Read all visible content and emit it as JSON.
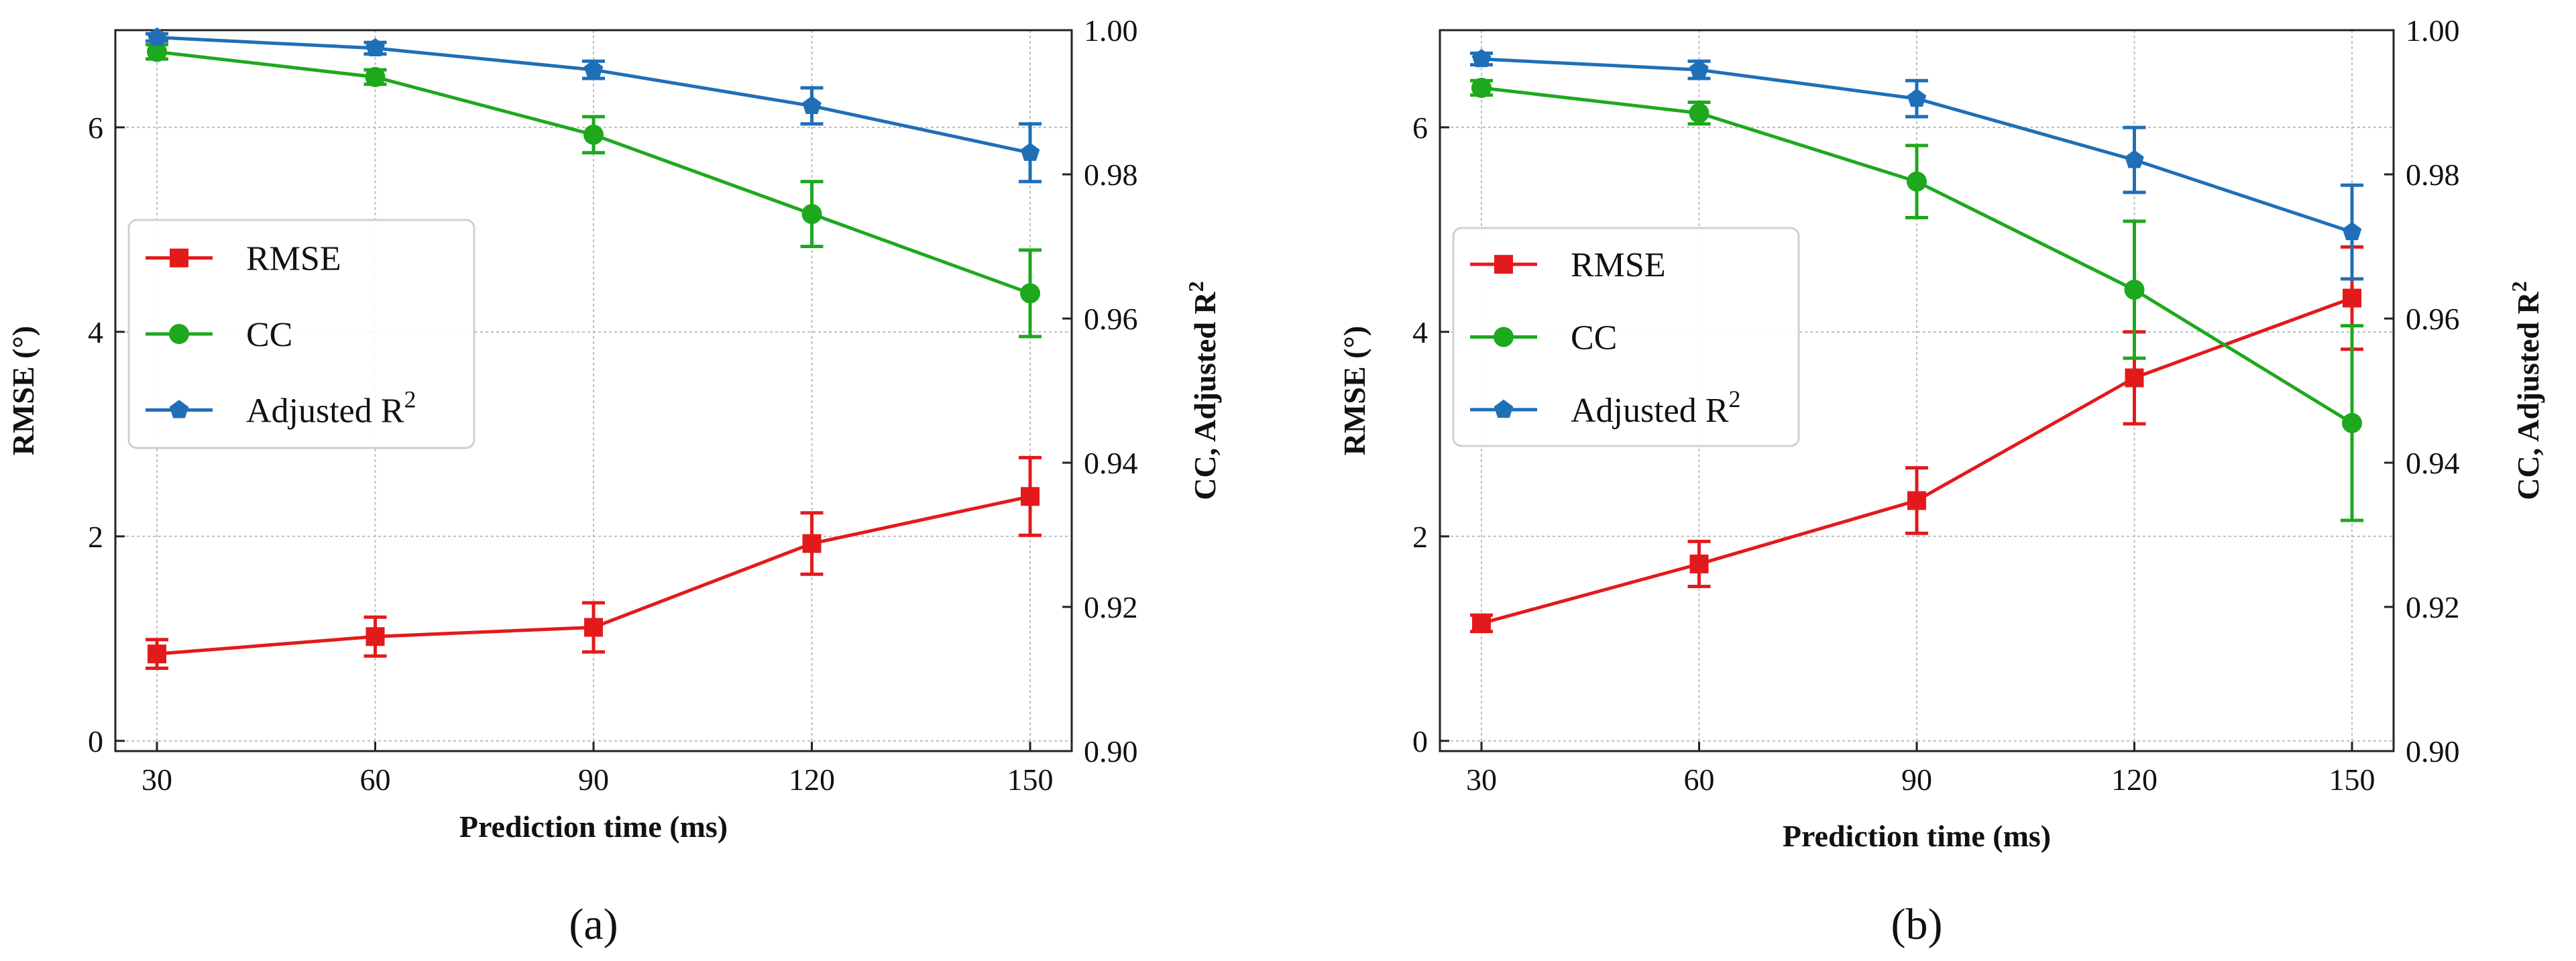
{
  "colors": {
    "RMSE": "#e31a1c",
    "CC": "#1ea81e",
    "Adjusted R2": "#1f6fb8"
  },
  "chart_data": [
    {
      "type": "line",
      "panel_label": "(a)",
      "xlabel": "Prediction time (ms)",
      "ylabel": "RMSE (°)",
      "y2label": "CC, Adjusted R",
      "y2label_sup": "2",
      "x": [
        30,
        60,
        90,
        120,
        150
      ],
      "xticks": [
        "30",
        "60",
        "90",
        "120",
        "150"
      ],
      "ylim": [
        -0.1,
        6.95
      ],
      "yticks": [
        "0",
        "2",
        "4",
        "6"
      ],
      "y2lim": [
        0.9,
        1.0
      ],
      "y2ticks": [
        "0.90",
        "0.92",
        "0.94",
        "0.96",
        "0.98",
        "1.00"
      ],
      "grid": true,
      "legend_position": "center-left",
      "series": [
        {
          "name": "RMSE",
          "legend_label": "RMSE",
          "axis": "left",
          "marker": "square",
          "values": [
            0.85,
            1.02,
            1.11,
            1.93,
            2.39
          ],
          "errors": [
            0.14,
            0.19,
            0.24,
            0.3,
            0.38
          ]
        },
        {
          "name": "CC",
          "legend_label": "CC",
          "axis": "right",
          "marker": "circle",
          "values": [
            0.997,
            0.9935,
            0.9855,
            0.9745,
            0.9635
          ],
          "errors": [
            0.001,
            0.001,
            0.0025,
            0.0045,
            0.006
          ]
        },
        {
          "name": "Adjusted R2",
          "legend_label": "Adjusted R",
          "legend_sup": "2",
          "axis": "right",
          "marker": "pentagon",
          "values": [
            0.999,
            0.9975,
            0.9945,
            0.9895,
            0.983
          ],
          "errors": [
            0.0005,
            0.0008,
            0.0012,
            0.0025,
            0.004
          ]
        }
      ]
    },
    {
      "type": "line",
      "panel_label": "(b)",
      "xlabel": "Prediction time (ms)",
      "ylabel": "RMSE (°)",
      "y2label": "CC, Adjusted R",
      "y2label_sup": "2",
      "x": [
        30,
        60,
        90,
        120,
        150
      ],
      "xticks": [
        "30",
        "60",
        "90",
        "120",
        "150"
      ],
      "ylim": [
        -0.1,
        6.95
      ],
      "yticks": [
        "0",
        "2",
        "4",
        "6"
      ],
      "y2lim": [
        0.9,
        1.0
      ],
      "y2ticks": [
        "0.90",
        "0.92",
        "0.94",
        "0.96",
        "0.98",
        "1.00"
      ],
      "grid": true,
      "legend_position": "upper-left",
      "series": [
        {
          "name": "RMSE",
          "legend_label": "RMSE",
          "axis": "left",
          "marker": "square",
          "values": [
            1.15,
            1.73,
            2.35,
            3.55,
            4.33
          ],
          "errors": [
            0.08,
            0.22,
            0.32,
            0.45,
            0.5
          ]
        },
        {
          "name": "CC",
          "legend_label": "CC",
          "axis": "right",
          "marker": "circle",
          "values": [
            0.992,
            0.9885,
            0.979,
            0.964,
            0.9455
          ],
          "errors": [
            0.001,
            0.0015,
            0.005,
            0.0095,
            0.0135
          ]
        },
        {
          "name": "Adjusted R2",
          "legend_label": "Adjusted R",
          "legend_sup": "2",
          "axis": "right",
          "marker": "pentagon",
          "values": [
            0.996,
            0.9945,
            0.9905,
            0.982,
            0.972
          ],
          "errors": [
            0.0008,
            0.0012,
            0.0025,
            0.0045,
            0.0065
          ]
        }
      ]
    }
  ]
}
